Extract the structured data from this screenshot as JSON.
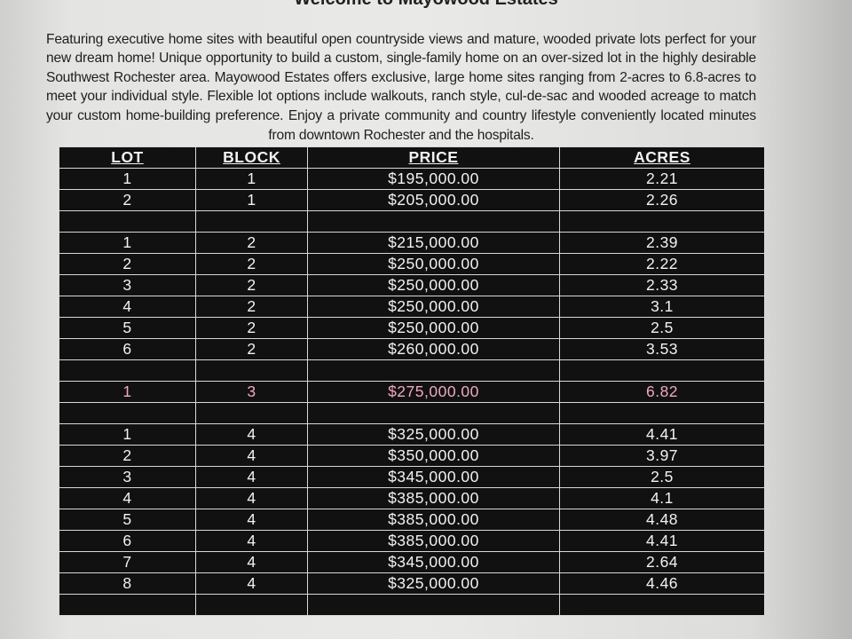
{
  "document": {
    "title": "Welcome to Mayowood Estates",
    "intro": "Featuring executive home sites with beautiful open countryside views and mature, wooded private lots perfect for your new dream home! Unique opportunity to build a custom, single-family home on an over-sized lot in the highly desirable Southwest Rochester area.  Mayowood Estates offers exclusive, large home sites ranging from 2-acres to 6.8-acres to meet your individual style. Flexible lot options include walkouts, ranch style, cul-de-sac and wooded acreage to match your custom home-building preference.  Enjoy a private community and country lifestyle conveniently located minutes from downtown Rochester and the hospitals."
  },
  "table": {
    "headers": [
      "LOT",
      "BLOCK",
      "PRICE",
      "ACRES"
    ],
    "rows": [
      [
        "1",
        "1",
        "$195,000.00",
        "2.21"
      ],
      [
        "2",
        "1",
        "$205,000.00",
        "2.26"
      ],
      [
        "",
        "",
        "",
        ""
      ],
      [
        "1",
        "2",
        "$215,000.00",
        "2.39"
      ],
      [
        "2",
        "2",
        "$250,000.00",
        "2.22"
      ],
      [
        "3",
        "2",
        "$250,000.00",
        "2.33"
      ],
      [
        "4",
        "2",
        "$250,000.00",
        "3.1"
      ],
      [
        "5",
        "2",
        "$250,000.00",
        "2.5"
      ],
      [
        "6",
        "2",
        "$260,000.00",
        "3.53"
      ],
      [
        "",
        "",
        "",
        ""
      ],
      [
        "1",
        "3",
        "$275,000.00",
        "6.82"
      ],
      [
        "",
        "",
        "",
        ""
      ],
      [
        "1",
        "4",
        "$325,000.00",
        "4.41"
      ],
      [
        "2",
        "4",
        "$350,000.00",
        "3.97"
      ],
      [
        "3",
        "4",
        "$345,000.00",
        "2.5"
      ],
      [
        "4",
        "4",
        "$385,000.00",
        "4.1"
      ],
      [
        "5",
        "4",
        "$385,000.00",
        "4.48"
      ],
      [
        "6",
        "4",
        "$385,000.00",
        "4.41"
      ],
      [
        "7",
        "4",
        "$345,000.00",
        "2.64"
      ],
      [
        "8",
        "4",
        "$325,000.00",
        "4.46"
      ],
      [
        "",
        "",
        "",
        ""
      ]
    ],
    "highlight_row_color": "#f0a8c4"
  }
}
